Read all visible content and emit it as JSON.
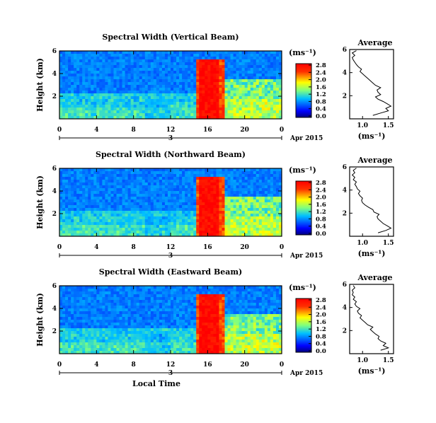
{
  "chart_data": [
    {
      "type": "heatmap",
      "title": "Spectral Width (Vertical Beam)",
      "ylabel": "Height (km)",
      "x_ticks": [
        "0",
        "4",
        "8",
        "12",
        "16",
        "20",
        "0"
      ],
      "y_ticks": [
        "2",
        "4",
        "6"
      ],
      "date_label": "3",
      "month_year": "Apr 2015",
      "colorbar": {
        "unit": "(ms⁻¹)",
        "ticks": [
          "0.0",
          "0.4",
          "0.8",
          "1.2",
          "1.6",
          "2.0",
          "2.4",
          "2.8"
        ]
      },
      "average": {
        "title": "Average",
        "xlabel": "(ms⁻¹)",
        "x_ticks": [
          "1.0",
          "1.5"
        ],
        "y_ticks": [
          "2",
          "4",
          "6"
        ],
        "profile": [
          [
            1.2,
            0.3
          ],
          [
            1.35,
            0.5
          ],
          [
            1.5,
            0.7
          ],
          [
            1.45,
            0.9
          ],
          [
            1.55,
            1.1
          ],
          [
            1.48,
            1.3
          ],
          [
            1.4,
            1.5
          ],
          [
            1.3,
            1.7
          ],
          [
            1.25,
            1.9
          ],
          [
            1.35,
            2.1
          ],
          [
            1.3,
            2.3
          ],
          [
            1.28,
            2.5
          ],
          [
            1.35,
            2.7
          ],
          [
            1.25,
            2.9
          ],
          [
            1.2,
            3.1
          ],
          [
            1.15,
            3.3
          ],
          [
            1.1,
            3.5
          ],
          [
            1.05,
            3.7
          ],
          [
            1.0,
            3.9
          ],
          [
            0.95,
            4.1
          ],
          [
            0.98,
            4.3
          ],
          [
            0.92,
            4.5
          ],
          [
            0.88,
            4.7
          ],
          [
            0.85,
            4.9
          ],
          [
            0.82,
            5.1
          ],
          [
            0.8,
            5.3
          ],
          [
            0.85,
            5.5
          ],
          [
            0.8,
            5.7
          ],
          [
            0.88,
            5.9
          ]
        ]
      }
    },
    {
      "type": "heatmap",
      "title": "Spectral Width (Northward Beam)",
      "ylabel": "Height (km)",
      "x_ticks": [
        "0",
        "4",
        "8",
        "12",
        "16",
        "20",
        "0"
      ],
      "y_ticks": [
        "2",
        "4",
        "6"
      ],
      "date_label": "3",
      "month_year": "Apr 2015",
      "colorbar": {
        "unit": "(ms⁻¹)",
        "ticks": [
          "0.0",
          "0.4",
          "0.8",
          "1.2",
          "1.6",
          "2.0",
          "2.4",
          "2.8"
        ]
      },
      "average": {
        "title": "Average",
        "xlabel": "(ms⁻¹)",
        "x_ticks": [
          "1.0",
          "1.5"
        ],
        "y_ticks": [
          "2",
          "4",
          "6"
        ],
        "profile": [
          [
            1.3,
            0.3
          ],
          [
            1.45,
            0.5
          ],
          [
            1.55,
            0.7
          ],
          [
            1.48,
            0.9
          ],
          [
            1.4,
            1.1
          ],
          [
            1.35,
            1.3
          ],
          [
            1.3,
            1.5
          ],
          [
            1.28,
            1.7
          ],
          [
            1.32,
            1.9
          ],
          [
            1.22,
            2.1
          ],
          [
            1.2,
            2.3
          ],
          [
            1.12,
            2.5
          ],
          [
            1.05,
            2.7
          ],
          [
            1.0,
            2.9
          ],
          [
            0.98,
            3.1
          ],
          [
            1.0,
            3.3
          ],
          [
            0.95,
            3.5
          ],
          [
            0.92,
            3.7
          ],
          [
            0.95,
            3.9
          ],
          [
            0.9,
            4.1
          ],
          [
            0.88,
            4.3
          ],
          [
            0.85,
            4.5
          ],
          [
            0.88,
            4.7
          ],
          [
            0.82,
            4.9
          ],
          [
            0.85,
            5.1
          ],
          [
            0.8,
            5.3
          ],
          [
            0.85,
            5.5
          ],
          [
            0.82,
            5.7
          ],
          [
            0.88,
            5.9
          ]
        ]
      }
    },
    {
      "type": "heatmap",
      "title": "Spectral Width (Eastward Beam)",
      "ylabel": "Height (km)",
      "x_ticks": [
        "0",
        "4",
        "8",
        "12",
        "16",
        "20",
        "0"
      ],
      "y_ticks": [
        "2",
        "4",
        "6"
      ],
      "date_label": "3",
      "month_year": "Apr 2015",
      "xlabel": "Local Time",
      "colorbar": {
        "unit": "(ms⁻¹)",
        "ticks": [
          "0.0",
          "0.4",
          "0.8",
          "1.2",
          "1.6",
          "2.0",
          "2.4",
          "2.8"
        ]
      },
      "average": {
        "title": "Average",
        "xlabel": "(ms⁻¹)",
        "x_ticks": [
          "1.0",
          "1.5"
        ],
        "y_ticks": [
          "2",
          "4",
          "6"
        ],
        "profile": [
          [
            1.35,
            0.3
          ],
          [
            1.5,
            0.5
          ],
          [
            1.4,
            0.7
          ],
          [
            1.45,
            0.9
          ],
          [
            1.35,
            1.1
          ],
          [
            1.3,
            1.3
          ],
          [
            1.32,
            1.5
          ],
          [
            1.25,
            1.7
          ],
          [
            1.2,
            1.9
          ],
          [
            1.15,
            2.1
          ],
          [
            1.2,
            2.3
          ],
          [
            1.1,
            2.5
          ],
          [
            1.05,
            2.7
          ],
          [
            1.0,
            2.9
          ],
          [
            0.95,
            3.1
          ],
          [
            0.98,
            3.3
          ],
          [
            0.92,
            3.5
          ],
          [
            0.9,
            3.7
          ],
          [
            0.95,
            3.9
          ],
          [
            0.88,
            4.1
          ],
          [
            0.85,
            4.3
          ],
          [
            0.88,
            4.5
          ],
          [
            0.82,
            4.7
          ],
          [
            0.85,
            4.9
          ],
          [
            0.8,
            5.1
          ],
          [
            0.82,
            5.3
          ],
          [
            0.8,
            5.5
          ],
          [
            0.85,
            5.7
          ],
          [
            0.82,
            5.9
          ]
        ]
      }
    }
  ]
}
